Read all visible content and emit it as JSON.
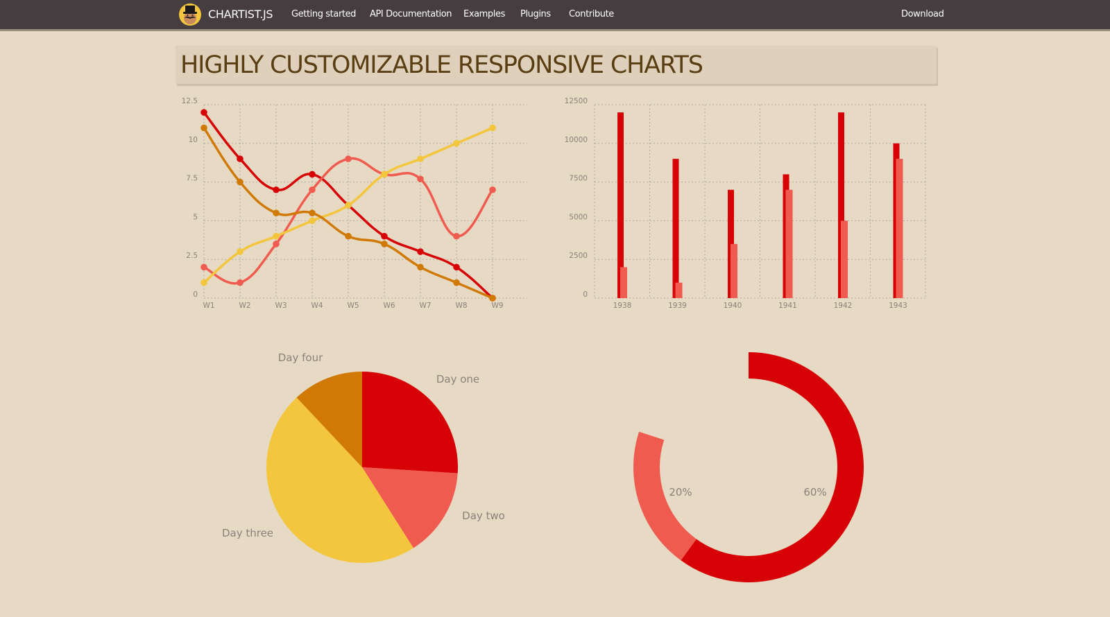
{
  "nav": {
    "brand": "CHARTIST.JS",
    "links": [
      "Getting started",
      "API Documentation",
      "Examples",
      "Plugins",
      "Contribute"
    ],
    "download": "Download",
    "logo_icon": "mustache-top-hat-icon"
  },
  "headline": "HIGHLY CUSTOMIZABLE RESPONSIVE CHARTS",
  "colors": {
    "background": "#e6dac5",
    "navbar": "#453d3f",
    "headline_text": "#5a3e13",
    "series_a": "#d70206",
    "series_b": "#f05b4f",
    "series_c": "#f4c63d",
    "series_d": "#d17905",
    "axis_label": "#8a8179",
    "grid": "#a89e92"
  },
  "chart_data": [
    {
      "type": "line",
      "title": "",
      "xlabel": "",
      "ylabel": "",
      "categories": [
        "W1",
        "W2",
        "W3",
        "W4",
        "W5",
        "W6",
        "W7",
        "W8",
        "W9"
      ],
      "y_ticks": [
        "0",
        "2.5",
        "5",
        "7.5",
        "10",
        "12.5"
      ],
      "ylim": [
        0,
        12.5
      ],
      "grid": true,
      "smooth": true,
      "series": [
        {
          "name": "series-a",
          "color": "#d70206",
          "values": [
            12,
            9,
            7,
            8,
            6,
            4,
            3,
            2,
            0
          ]
        },
        {
          "name": "series-b",
          "color": "#f05b4f",
          "values": [
            2,
            1,
            3.5,
            7,
            9,
            8,
            7.7,
            4,
            7
          ]
        },
        {
          "name": "series-c",
          "color": "#f4c63d",
          "values": [
            1,
            3,
            4,
            5,
            6,
            8,
            9,
            10,
            11
          ]
        },
        {
          "name": "series-d",
          "color": "#d17905",
          "values": [
            11,
            7.5,
            5.5,
            5.5,
            4,
            3.5,
            2,
            1,
            0
          ]
        }
      ]
    },
    {
      "type": "bar",
      "title": "",
      "xlabel": "",
      "ylabel": "",
      "categories": [
        "1938",
        "1939",
        "1940",
        "1941",
        "1942",
        "1943"
      ],
      "y_ticks": [
        "0",
        "2500",
        "5000",
        "7500",
        "10000",
        "12500"
      ],
      "ylim": [
        0,
        12500
      ],
      "grid": true,
      "series": [
        {
          "name": "series-a",
          "color": "#d70206",
          "values": [
            12000,
            9000,
            7000,
            8000,
            12000,
            10000
          ]
        },
        {
          "name": "series-b",
          "color": "#f05b4f",
          "values": [
            2000,
            1000,
            3500,
            7000,
            5000,
            9000
          ]
        }
      ]
    },
    {
      "type": "pie",
      "title": "",
      "labels": [
        "Day one",
        "Day two",
        "Day three",
        "Day four"
      ],
      "values": [
        26,
        15,
        47,
        12
      ],
      "colors": [
        "#d70206",
        "#f05b4f",
        "#f4c63d",
        "#d17905"
      ]
    },
    {
      "type": "pie",
      "subtype": "gauge-donut",
      "title": "",
      "labels": [
        "60%",
        "20%"
      ],
      "values": [
        60,
        20
      ],
      "total": 100,
      "colors": [
        "#d70206",
        "#f05b4f"
      ]
    }
  ]
}
